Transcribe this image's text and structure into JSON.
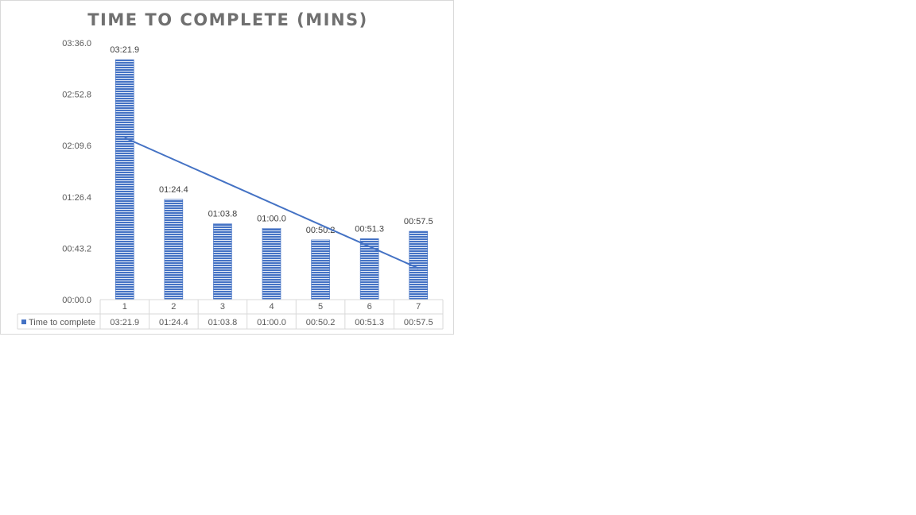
{
  "chart_data": {
    "type": "bar",
    "title": "TIME TO COMPLETE (MINS)",
    "categories": [
      "1",
      "2",
      "3",
      "4",
      "5",
      "6",
      "7"
    ],
    "series": [
      {
        "name": "Time to complete",
        "values_seconds": [
          201.9,
          84.4,
          63.8,
          60.0,
          50.2,
          51.3,
          57.5
        ],
        "labels": [
          "03:21.9",
          "01:24.4",
          "01:03.8",
          "01:00.0",
          "00:50.2",
          "00:51.3",
          "00:57.5"
        ]
      }
    ],
    "trendline": {
      "type": "linear",
      "series": "Time to complete"
    },
    "y_ticks": [
      "00:00.0",
      "00:43.2",
      "01:26.4",
      "02:09.6",
      "02:52.8",
      "03:36.0"
    ],
    "ylim_seconds": [
      0,
      216
    ],
    "data_table": true,
    "grid": false,
    "colors": {
      "bar": "#4472c4",
      "bar_hatch": "#ffffff",
      "trend": "#4472c4"
    }
  }
}
